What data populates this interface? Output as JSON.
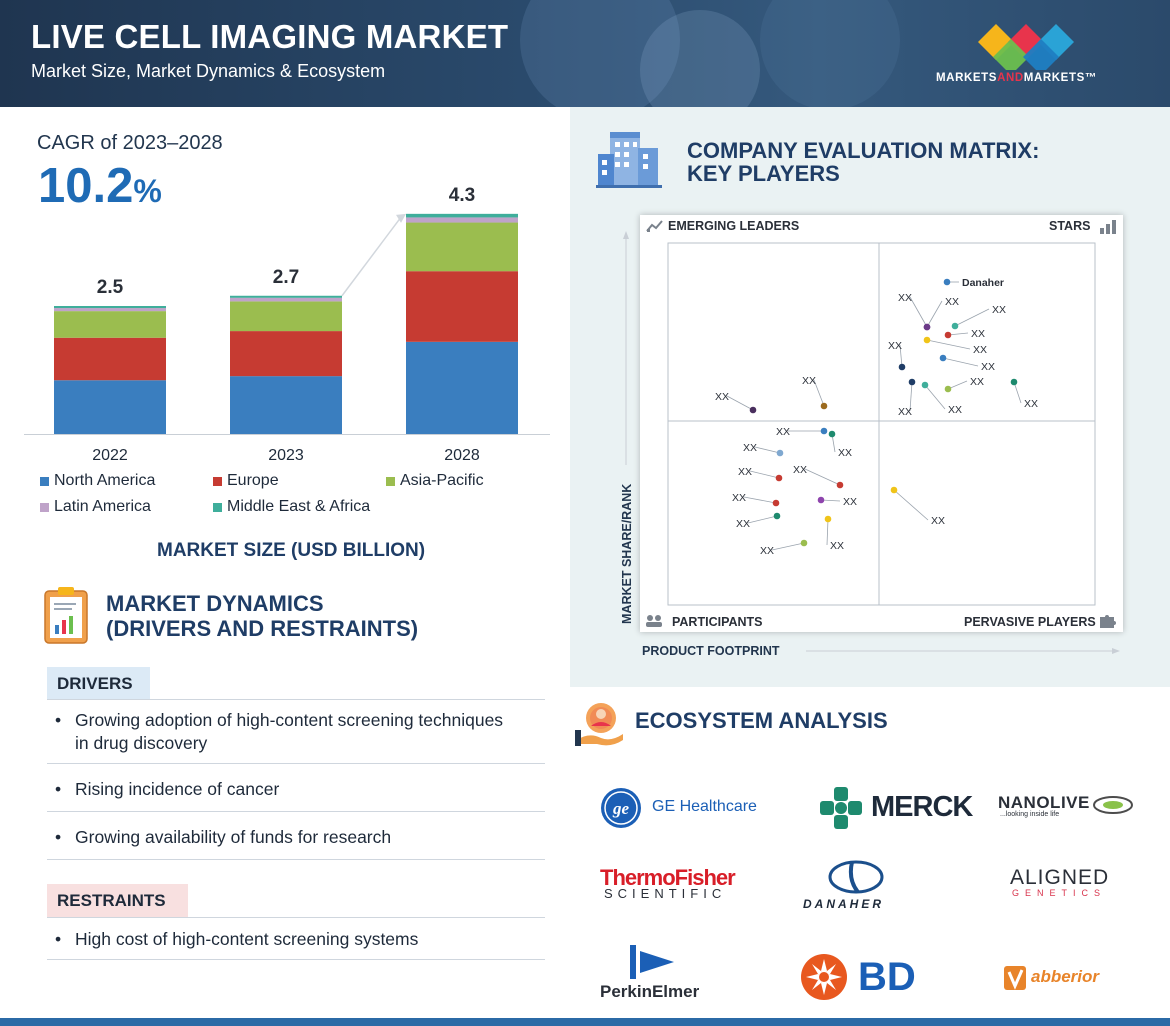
{
  "header": {
    "title": "LIVE CELL IMAGING MARKET",
    "subtitle": "Market Size, Market Dynamics & Ecosystem",
    "brand_prefix": "MARKETS",
    "brand_and": "AND",
    "brand_suffix": "MARKETS™"
  },
  "cagr": {
    "label": "CAGR of 2023–2028",
    "value": "10.2",
    "unit": "%"
  },
  "chart_data": {
    "type": "bar",
    "stacked": true,
    "categories": [
      "2022",
      "2023",
      "2028"
    ],
    "totals": [
      "2.5",
      "2.7",
      "4.3"
    ],
    "series": [
      {
        "name": "North America",
        "color": "#3a7ebf",
        "values": [
          1.05,
          1.13,
          1.8
        ]
      },
      {
        "name": "Europe",
        "color": "#c63b32",
        "values": [
          0.83,
          0.88,
          1.38
        ]
      },
      {
        "name": "Asia-Pacific",
        "color": "#9bbd4f",
        "values": [
          0.52,
          0.58,
          0.95
        ]
      },
      {
        "name": "Latin America",
        "color": "#bfa3c9",
        "values": [
          0.06,
          0.07,
          0.1
        ]
      },
      {
        "name": "Middle East & Africa",
        "color": "#3fae9b",
        "values": [
          0.04,
          0.04,
          0.07
        ]
      }
    ],
    "title": "MARKET SIZE (USD BILLION)",
    "ylim": [
      0,
      4.5
    ]
  },
  "dynamics": {
    "title_line1": "MARKET DYNAMICS",
    "title_line2": "(DRIVERS AND RESTRAINTS)",
    "drivers_label": "DRIVERS",
    "drivers": [
      "Growing adoption of high-content screening techniques in drug discovery",
      "Rising incidence of cancer",
      "Growing availability of funds for research"
    ],
    "restraints_label": "RESTRAINTS",
    "restraints": [
      "High cost of high-content screening systems"
    ]
  },
  "matrix": {
    "title_line1": "COMPANY EVALUATION MATRIX:",
    "title_line2": "KEY PLAYERS",
    "q_emerging": "EMERGING LEADERS",
    "q_stars": "STARS",
    "q_participants": "PARTICIPANTS",
    "q_pervasive": "PERVASIVE PLAYERS",
    "y_axis": "MARKET SHARE/RANK",
    "x_axis": "PRODUCT FOOTPRINT",
    "named_company": "Danaher",
    "placeholder": "XX"
  },
  "ecosystem": {
    "title": "ECOSYSTEM ANALYSIS",
    "logos": [
      "GE Healthcare",
      "MERCK",
      "NANOLIVE",
      "...looking inside life",
      "ThermoFisher",
      "SCIENTIFIC",
      "DANAHER",
      "ALIGNED",
      "GENETICS",
      "PerkinElmer",
      "BD",
      "abberior"
    ]
  }
}
